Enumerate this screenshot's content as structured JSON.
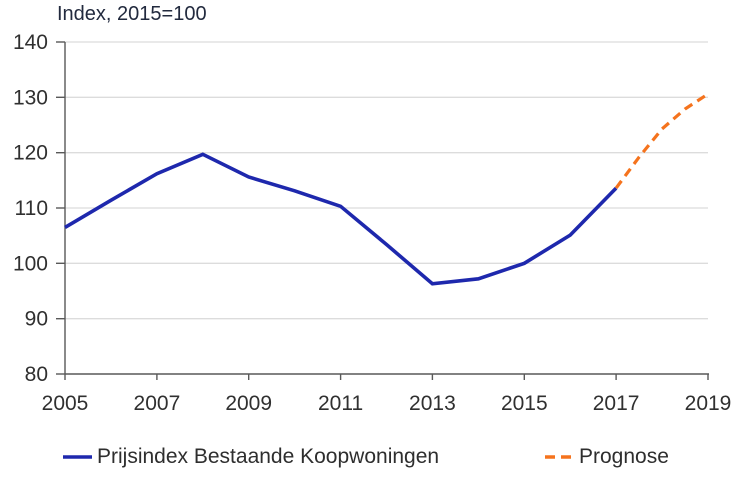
{
  "chart_data": {
    "type": "line",
    "title": "Index, 2015=100",
    "xlabel": "",
    "ylabel": "Index, 2015=100",
    "xlim": [
      2005,
      2019
    ],
    "ylim": [
      80,
      140
    ],
    "x_ticks": [
      2005,
      2007,
      2009,
      2011,
      2013,
      2015,
      2017,
      2019
    ],
    "y_ticks": [
      80,
      90,
      100,
      110,
      120,
      130,
      140
    ],
    "grid": "horizontal",
    "legend_position": "bottom",
    "series": [
      {
        "name": "Prijsindex Bestaande Koopwoningen",
        "style": "solid",
        "color": "#1e28ad",
        "x": [
          2005,
          2006,
          2007,
          2008,
          2009,
          2010,
          2011,
          2012,
          2013,
          2014,
          2015,
          2016,
          2017
        ],
        "values": [
          106.5,
          111.4,
          116.2,
          119.7,
          115.6,
          113.1,
          110.3,
          103.4,
          96.3,
          97.2,
          100.0,
          105.1,
          113.6
        ]
      },
      {
        "name": "Prognose",
        "style": "dashed",
        "color": "#f5731d",
        "x": [
          2017,
          2017.5,
          2018,
          2018.5,
          2019
        ],
        "values": [
          113.6,
          119.2,
          124.3,
          127.9,
          130.6
        ]
      }
    ]
  },
  "colors": {
    "grid": "#dcdcdc",
    "axis": "#595959",
    "tick_label": "#303030",
    "title": "#222a3e",
    "legend_text": "#2e2e2e"
  }
}
